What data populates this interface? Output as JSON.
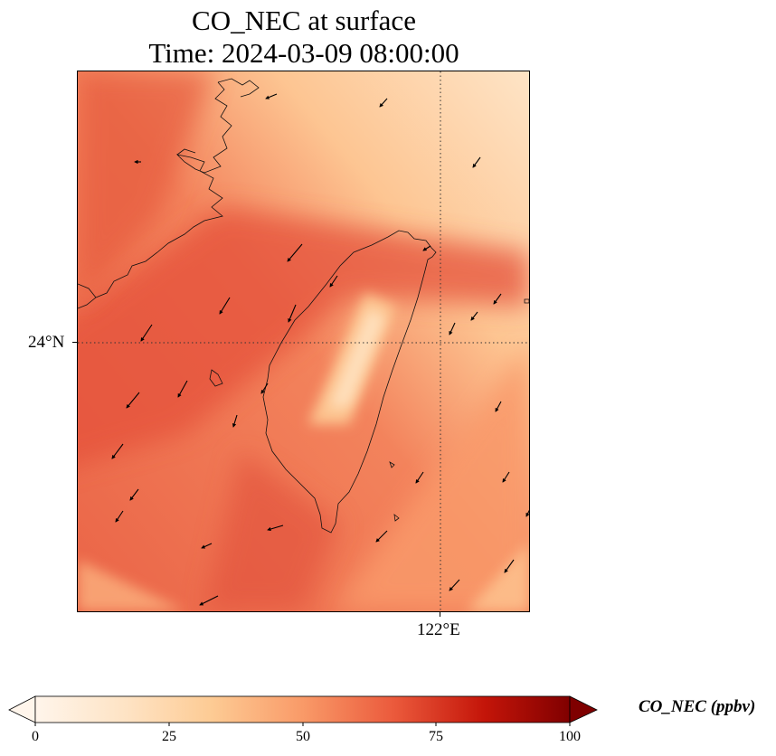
{
  "figure": {
    "title_line1": "CO_NEC at surface",
    "title_line2": "Time: 2024-03-09 08:00:00"
  },
  "map": {
    "latitude_label": "24°N",
    "longitude_label": "122°E",
    "gridline_style": "dotted",
    "colormap": [
      "#fff5eb",
      "#fdd49e",
      "#fdbb84",
      "#fc8d59",
      "#e34a33",
      "#b30000",
      "#7f0000"
    ]
  },
  "colorbar": {
    "label": "CO_NEC (ppbv)",
    "ticks": [
      "0",
      "25",
      "50",
      "75",
      "100"
    ],
    "range": [
      0,
      100
    ],
    "extend": "both"
  }
}
